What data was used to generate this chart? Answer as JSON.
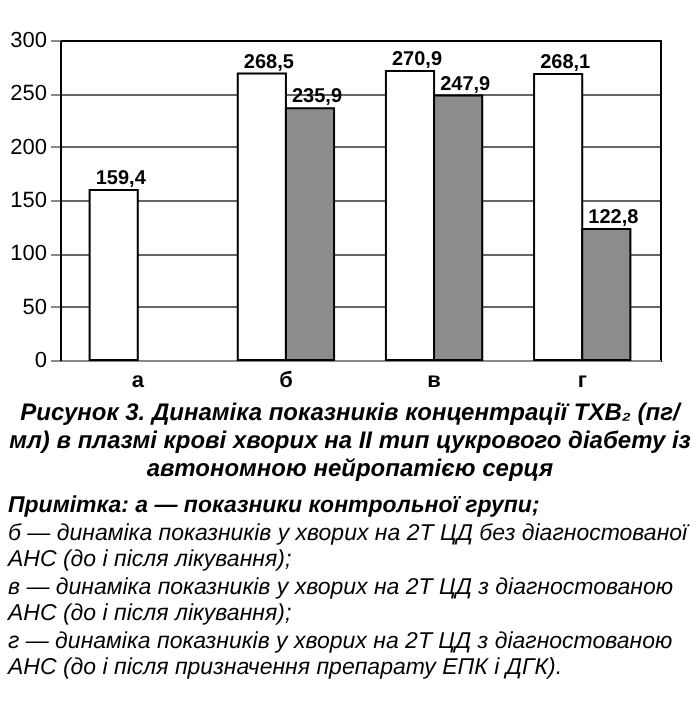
{
  "chart_data": {
    "type": "bar",
    "title": "Рисунок 3. Динаміка показників концентрації ТХВ₂ (пг/мл) в плазмі крові хворих на ІІ тип цукрового діабету із автономною нейропатією серця",
    "categories": [
      "а",
      "б",
      "в",
      "г"
    ],
    "series": [
      {
        "color": "#ffffff",
        "values": [
          159.4,
          268.5,
          270.9,
          268.1
        ],
        "value_labels": [
          "159,4",
          "268,5",
          "270,9",
          "268,1"
        ]
      },
      {
        "color": "#8c8c8c",
        "values": [
          null,
          235.9,
          247.9,
          122.8
        ],
        "value_labels": [
          null,
          "235,9",
          "247,9",
          "122,8"
        ]
      }
    ],
    "ylim": [
      0,
      300
    ],
    "yticks": [
      0,
      50,
      100,
      150,
      200,
      250,
      300
    ],
    "grid": "y",
    "legend": false,
    "annotations": [
      "Примітка: а — показники контрольної групи;",
      "б — динаміка показників у хворих на 2Т ЦД без діагностованої АНС (до і після лікування);",
      "в — динаміка показників у хворих на 2Т ЦД з діагностованою АНС (до і після лікування);",
      "г — динаміка показників у хворих на 2Т ЦД з діагностованою АНС (до і після призначення препарату ЕПК і ДГК)."
    ]
  }
}
